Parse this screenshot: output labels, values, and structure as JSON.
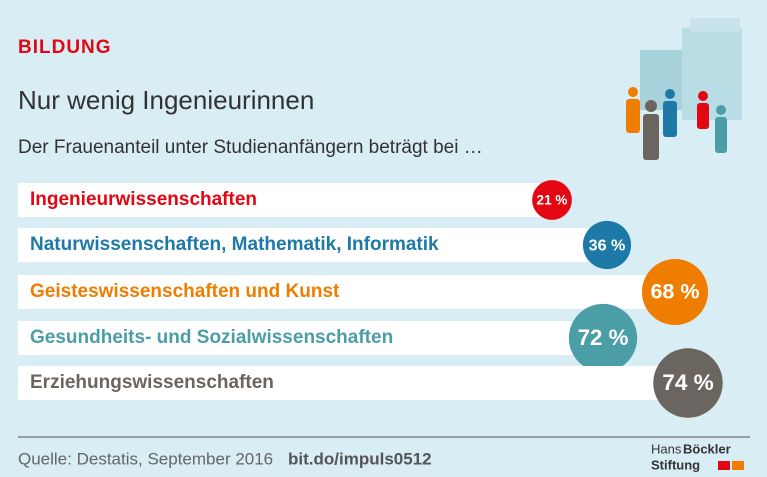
{
  "chart_data": {
    "type": "bubble",
    "kicker": "BILDUNG",
    "title": "Nur wenig Ingenieurinnen",
    "subtitle": "Der Frauenanteil unter Studienanfängern beträgt bei …",
    "categories": [
      "Ingenieurwissenschaften",
      "Naturwissenschaften, Mathematik, Informatik",
      "Geisteswissenschaften und Kunst",
      "Gesundheits- und Sozialwissenschaften",
      "Erziehungswissenschaften"
    ],
    "values": [
      21,
      36,
      68,
      72,
      74
    ],
    "value_labels": [
      "21 %",
      "36 %",
      "68 %",
      "72 %",
      "74 %"
    ],
    "colors": [
      "#e30613",
      "#1d7aa6",
      "#ef7d00",
      "#4c9ea6",
      "#6b6560"
    ],
    "source": "Quelle: Destatis, September 2016",
    "link": "bit.do/impuls0512",
    "logo": {
      "line1a": "Hans",
      "line1b": "Böckler",
      "line2": "Stiftung"
    }
  }
}
